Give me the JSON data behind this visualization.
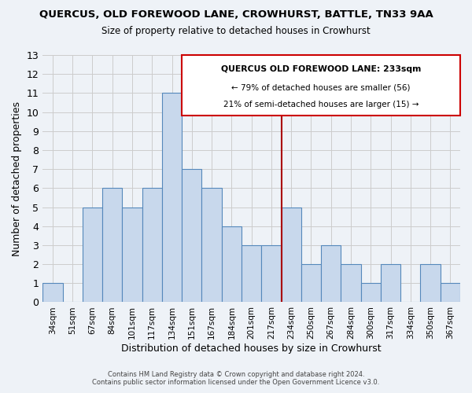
{
  "title": "QUERCUS, OLD FOREWOOD LANE, CROWHURST, BATTLE, TN33 9AA",
  "subtitle": "Size of property relative to detached houses in Crowhurst",
  "xlabel": "Distribution of detached houses by size in Crowhurst",
  "ylabel": "Number of detached properties",
  "categories": [
    "34sqm",
    "51sqm",
    "67sqm",
    "84sqm",
    "101sqm",
    "117sqm",
    "134sqm",
    "151sqm",
    "167sqm",
    "184sqm",
    "201sqm",
    "217sqm",
    "234sqm",
    "250sqm",
    "267sqm",
    "284sqm",
    "300sqm",
    "317sqm",
    "334sqm",
    "350sqm",
    "367sqm"
  ],
  "values": [
    1,
    0,
    5,
    6,
    5,
    6,
    11,
    7,
    6,
    4,
    3,
    3,
    5,
    2,
    3,
    2,
    1,
    2,
    0,
    2,
    1
  ],
  "bar_color": "#c8d8ec",
  "bar_edge_color": "#5588bb",
  "grid_color": "#cccccc",
  "vline_color": "#aa0000",
  "vline_x_index": 12,
  "ylim": [
    0,
    13
  ],
  "yticks": [
    0,
    1,
    2,
    3,
    4,
    5,
    6,
    7,
    8,
    9,
    10,
    11,
    12,
    13
  ],
  "annotation_title": "QUERCUS OLD FOREWOOD LANE: 233sqm",
  "annotation_line1": "← 79% of detached houses are smaller (56)",
  "annotation_line2": "21% of semi-detached houses are larger (15) →",
  "footer_line1": "Contains HM Land Registry data © Crown copyright and database right 2024.",
  "footer_line2": "Contains public sector information licensed under the Open Government Licence v3.0.",
  "bg_color": "#eef2f7",
  "plot_bg_color": "#eef2f7"
}
